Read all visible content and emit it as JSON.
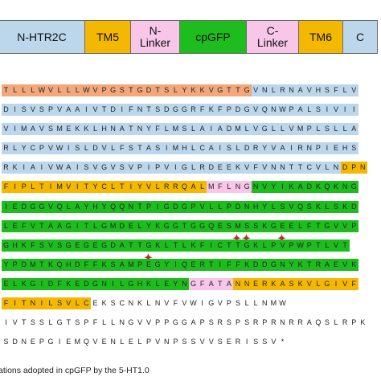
{
  "domains": [
    {
      "label": "N-HTR2C",
      "color": "#bcd7ec",
      "w": 108
    },
    {
      "label": "TM5",
      "color": "#f5b800",
      "w": 58
    },
    {
      "label": "N-\nLinker",
      "color": "#f7c6e8",
      "w": 62
    },
    {
      "label": "cpGFP",
      "color": "#1ebd1e",
      "w": 84
    },
    {
      "label": "C-\nLinker",
      "color": "#f7c6e8",
      "w": 66
    },
    {
      "label": "TM6",
      "color": "#f5b800",
      "w": 56
    },
    {
      "label": "C",
      "color": "#bcd7ec",
      "w": 44
    }
  ],
  "region_colors": {
    "signal": "#f3a77a",
    "htr": "#bcd7ec",
    "tm": "#f5b800",
    "linker": "#f7c6e8",
    "gfp": "#1ebd1e",
    "plain": "#ffffff"
  },
  "sequence_rows": [
    [
      [
        "signal",
        "TLLLWVLLLWVPGSTGDTSLYKKVGTTG"
      ],
      [
        "htr",
        "VNLRNAVHSFLV"
      ]
    ],
    [
      [
        "htr",
        "DISVSPVAAIVTDIFNTSDGGRFKFPDGVQNWPALSIVII"
      ]
    ],
    [
      [
        "htr",
        "VIMAVSMEKKLHNATNYFLMSLAIADMLVGLLVMPLSLLA"
      ]
    ],
    [
      [
        "htr",
        "RLYCPVWISLDVLFSTASIMHLCAISLDRYVAIRNPIEHS"
      ]
    ],
    [
      [
        "htr",
        "RKIAIVWAISVGVSVPIPVIGLRDEEKVFVNNTTCVLN"
      ],
      [
        "tm",
        "DPN"
      ]
    ],
    [
      [
        "tm",
        "FIPLTIMVITYCLTIYVLRRQAL"
      ],
      [
        "linker",
        "MFLNG"
      ],
      [
        "gfp",
        "NVYIKADKQKNG"
      ]
    ],
    [
      [
        "gfp",
        "IEDGGVQLAYHYQQNTPIGDGPVLLPDNHYLSVQSKLSKD"
      ]
    ],
    [
      [
        "gfp",
        "LEFVTAAGITLGMDELYKGGTGGQESMSSKGEELFTGVVP"
      ]
    ],
    [
      [
        "gfp",
        "GHKFSVSGEGEGDATTGKLTLKFICTTGKLPVPWPTLVT"
      ]
    ],
    [
      [
        "gfp",
        "YPDMTKQHDFFKSAMPEGYIQERTIFFKDDGNYKTRAEVK"
      ]
    ],
    [
      [
        "gfp",
        "ELKGIDFKEDGNILGHKLEYN"
      ],
      [
        "linker",
        "GFATA"
      ],
      [
        "tm",
        "NNERKASKVLGIVF"
      ]
    ],
    [
      [
        "tm",
        "FITNILSVLC"
      ],
      [
        "plain",
        "EKSCNKLNVFVWIGVPSLLNMW"
      ]
    ],
    [
      [
        "plain",
        "IVTSSLGTSPFLLNGVVPPGGAPSRSPSRPRNRRAQSLRPK"
      ]
    ],
    [
      [
        "plain",
        "SDNEPGIEMQVENLELPVNPSSVVSERISSV*"
      ]
    ]
  ],
  "mutation_marks": [
    {
      "row": 7,
      "col": 26,
      "symbol": "✦"
    },
    {
      "row": 7,
      "col": 27,
      "symbol": "✦"
    },
    {
      "row": 7,
      "col": 31,
      "symbol": "✦"
    },
    {
      "row": 8,
      "col": 16,
      "symbol": "✦"
    }
  ],
  "caption": "ations adopted in cpGFP by the 5-HT1.0"
}
